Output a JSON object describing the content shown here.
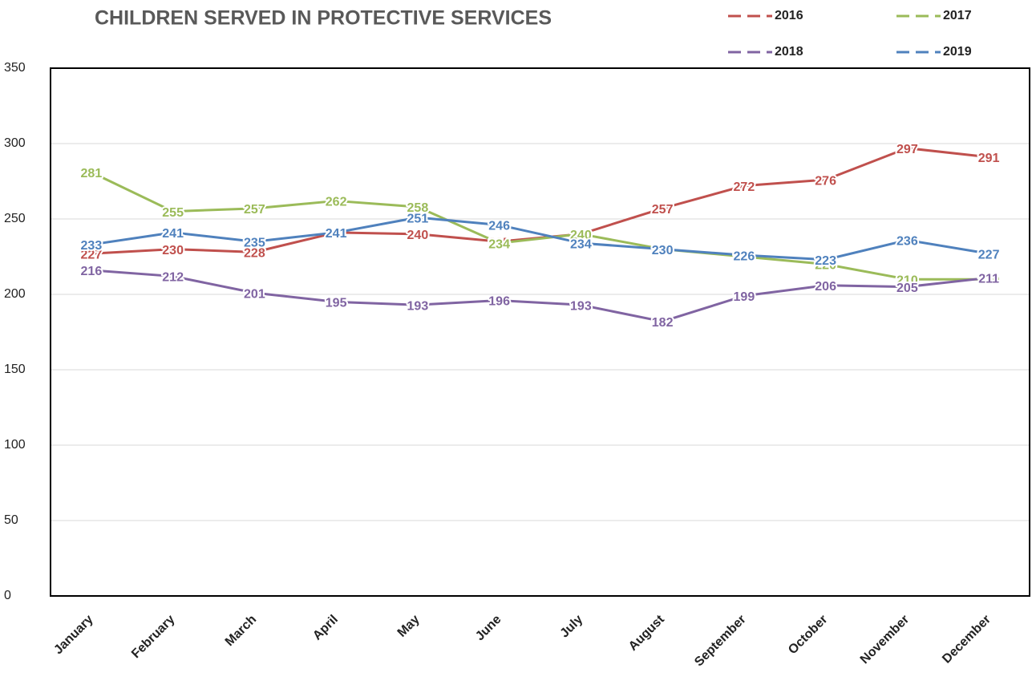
{
  "chart_data": {
    "type": "line",
    "title": "CHILDREN SERVED IN PROTECTIVE SERVICES",
    "categories": [
      "January",
      "February",
      "March",
      "April",
      "May",
      "June",
      "July",
      "August",
      "September",
      "October",
      "November",
      "December"
    ],
    "series": [
      {
        "name": "2016",
        "color": "#c0504d",
        "values": [
          227,
          230,
          228,
          241,
          240,
          235,
          240,
          257,
          272,
          276,
          297,
          291
        ]
      },
      {
        "name": "2017",
        "color": "#9bbb59",
        "values": [
          281,
          255,
          257,
          262,
          258,
          234,
          240,
          230,
          225,
          220,
          210,
          210
        ]
      },
      {
        "name": "2018",
        "color": "#8064a2",
        "values": [
          216,
          212,
          201,
          195,
          193,
          196,
          193,
          182,
          199,
          206,
          205,
          211
        ]
      },
      {
        "name": "2019",
        "color": "#4f81bd",
        "values": [
          233,
          241,
          235,
          241,
          251,
          246,
          234,
          230,
          226,
          223,
          236,
          227
        ]
      }
    ],
    "ylim": [
      0,
      350
    ],
    "yticks": [
      0,
      50,
      100,
      150,
      200,
      250,
      300,
      350
    ],
    "grid": true,
    "legend": "top-right"
  }
}
